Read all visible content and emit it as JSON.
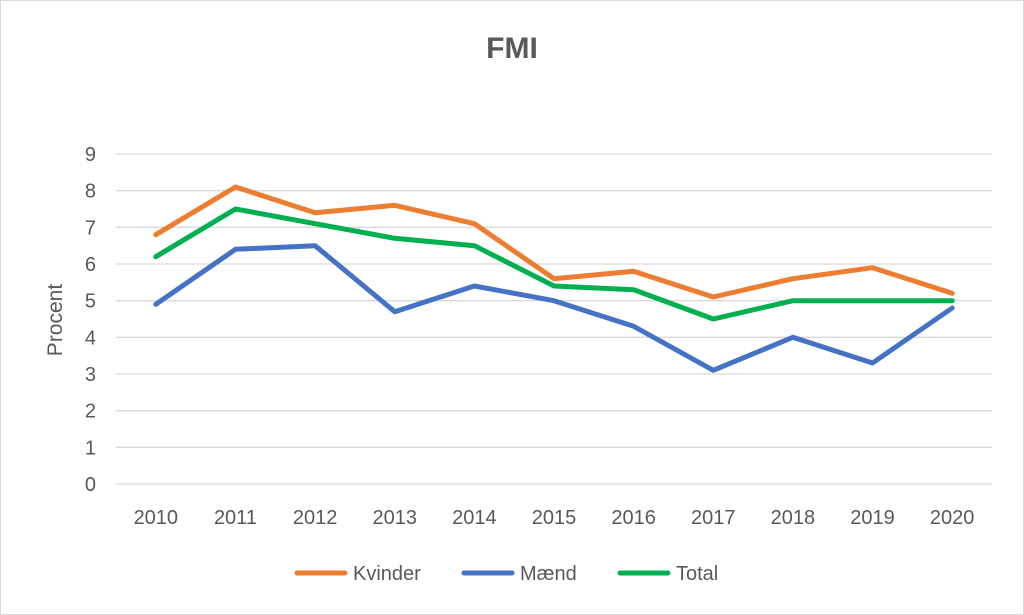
{
  "chart_data": {
    "type": "line",
    "title": "FMI",
    "xlabel": "",
    "ylabel": "Procent",
    "categories": [
      "2010",
      "2011",
      "2012",
      "2013",
      "2014",
      "2015",
      "2016",
      "2017",
      "2018",
      "2019",
      "2020"
    ],
    "ylim": [
      0,
      9
    ],
    "yticks": [
      "0",
      "1",
      "2",
      "3",
      "4",
      "5",
      "6",
      "7",
      "8",
      "9"
    ],
    "grid": true,
    "legend_position": "bottom",
    "series": [
      {
        "name": "Kvinder",
        "color": "#ed7d31",
        "values": [
          6.8,
          8.1,
          7.4,
          7.6,
          7.1,
          5.6,
          5.8,
          5.1,
          5.6,
          5.9,
          5.2
        ]
      },
      {
        "name": "Mænd",
        "color": "#4472c4",
        "values": [
          4.9,
          6.4,
          6.5,
          4.7,
          5.4,
          5.0,
          4.3,
          3.1,
          4.0,
          3.3,
          4.8
        ]
      },
      {
        "name": "Total",
        "color": "#00b050",
        "values": [
          6.2,
          7.5,
          7.1,
          6.7,
          6.5,
          5.4,
          5.3,
          4.5,
          5.0,
          5.0,
          5.0
        ]
      }
    ]
  }
}
